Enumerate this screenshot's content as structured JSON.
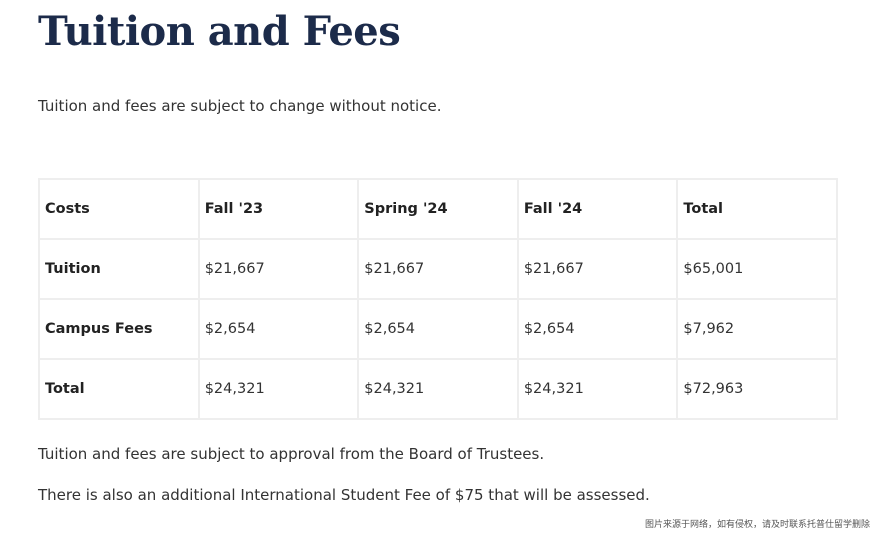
{
  "header": {
    "title": "Tuition and Fees"
  },
  "intro": "Tuition and fees are subject to change without notice.",
  "table": {
    "header": [
      "Costs",
      "Fall '23",
      "Spring '24",
      "Fall '24",
      "Total"
    ],
    "rows": [
      [
        "Tuition",
        "$21,667",
        "$21,667",
        "$21,667",
        "$65,001"
      ],
      [
        "Campus Fees",
        "$2,654",
        "$2,654",
        "$2,654",
        "$7,962"
      ],
      [
        "Total",
        "$24,321",
        "$24,321",
        "$24,321",
        "$72,963"
      ]
    ]
  },
  "notes": [
    "Tuition and fees are subject to approval from the Board of Trustees.",
    "There is also an additional International Student Fee of $75 that will be assessed."
  ],
  "watermark": "图片来源于网络，如有侵权，请及时联系托普仕留学删除"
}
